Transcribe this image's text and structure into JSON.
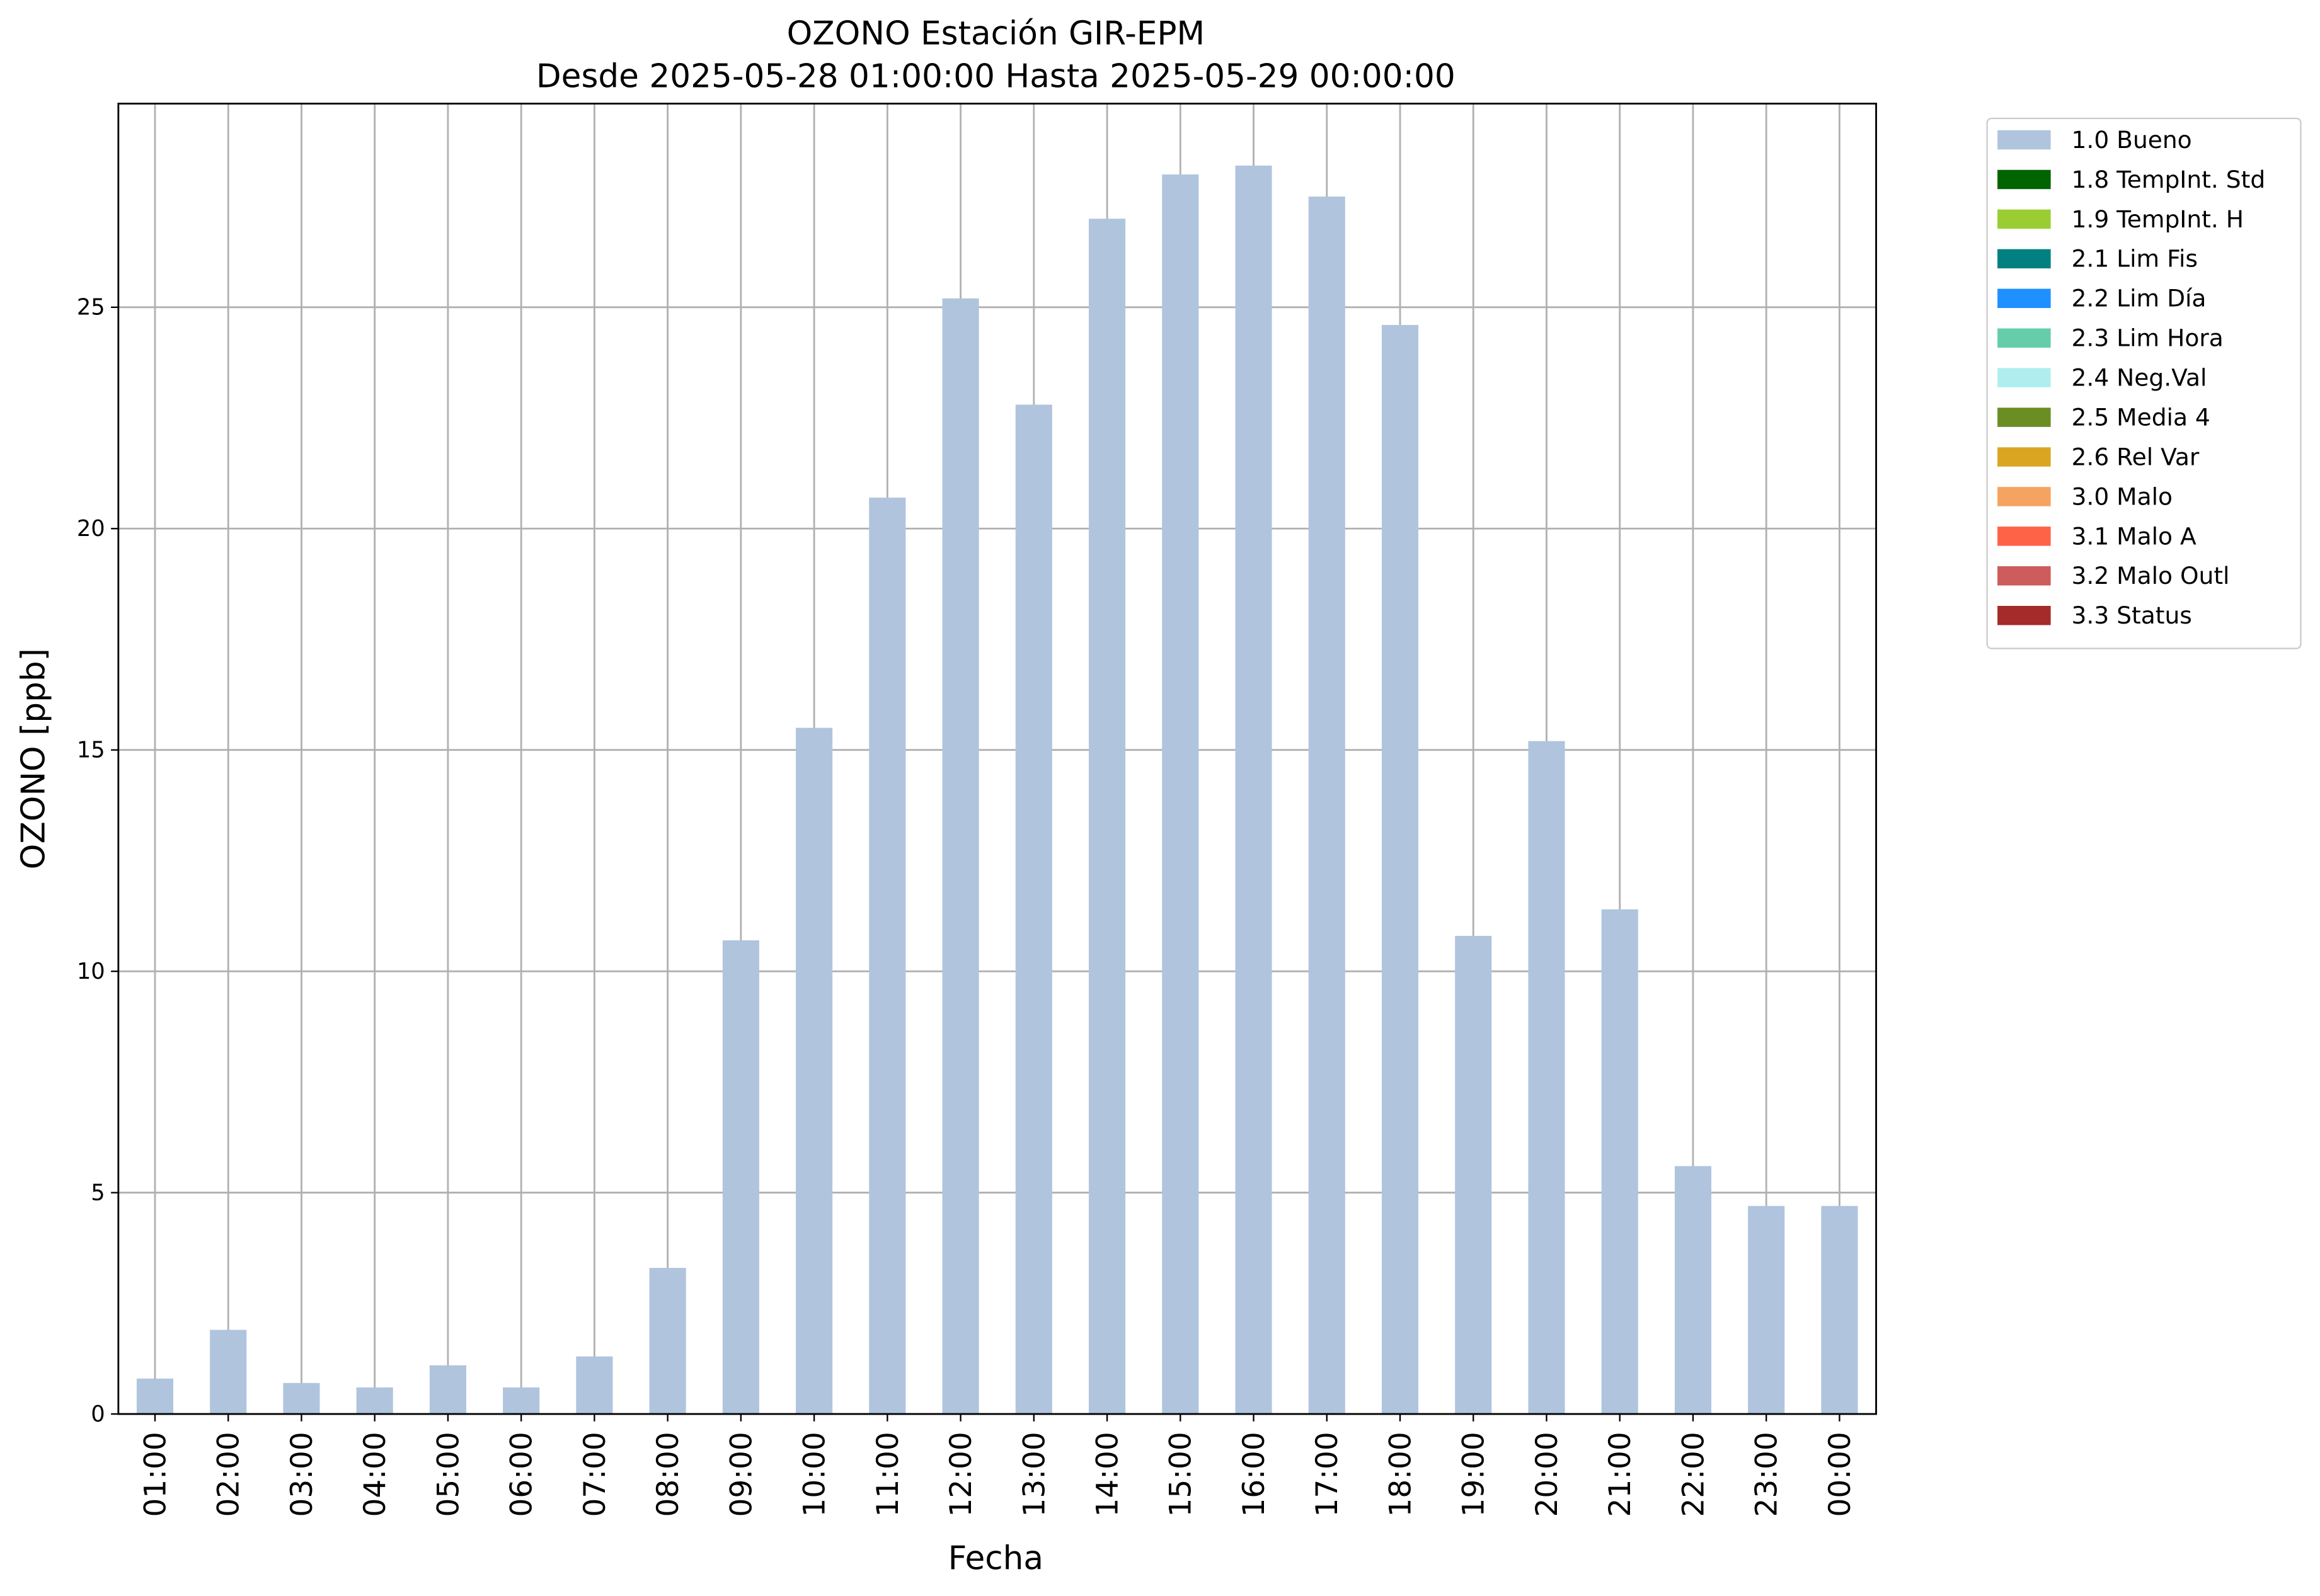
{
  "chart_data": {
    "type": "bar",
    "title": "OZONO Estación GIR-EPM",
    "subtitle": "Desde 2025-05-28 01:00:00 Hasta 2025-05-29 00:00:00",
    "x_label": "Fecha",
    "y_label": "OZONO [ppb]",
    "categories": [
      "01:00",
      "02:00",
      "03:00",
      "04:00",
      "05:00",
      "06:00",
      "07:00",
      "08:00",
      "09:00",
      "10:00",
      "11:00",
      "12:00",
      "13:00",
      "14:00",
      "15:00",
      "16:00",
      "17:00",
      "18:00",
      "19:00",
      "20:00",
      "21:00",
      "22:00",
      "23:00",
      "00:00"
    ],
    "series": [
      {
        "name": "1.0 Bueno",
        "color": "#b0c4de",
        "values": [
          0.8,
          1.9,
          0.7,
          0.6,
          1.1,
          0.6,
          1.3,
          3.3,
          10.7,
          15.5,
          20.7,
          25.2,
          22.8,
          27.0,
          28.0,
          28.2,
          27.5,
          24.6,
          10.8,
          15.2,
          11.4,
          5.6,
          4.7,
          4.7
        ]
      },
      {
        "name": "1.8 TempInt. Std",
        "color": "#006400"
      },
      {
        "name": "1.9 TempInt. H",
        "color": "#9acd32"
      },
      {
        "name": "2.1 Lim Fis",
        "color": "#008080"
      },
      {
        "name": "2.2 Lim Día",
        "color": "#1e90ff"
      },
      {
        "name": "2.3 Lim Hora",
        "color": "#66cdaa"
      },
      {
        "name": "2.4 Neg.Val",
        "color": "#afeeee"
      },
      {
        "name": "2.5 Media 4",
        "color": "#6b8e23"
      },
      {
        "name": "2.6 Rel Var",
        "color": "#daa520"
      },
      {
        "name": "3.0 Malo",
        "color": "#f4a460"
      },
      {
        "name": "3.1 Malo A",
        "color": "#ff6347"
      },
      {
        "name": "3.2 Malo Outl",
        "color": "#cd5c5c"
      },
      {
        "name": "3.3 Status",
        "color": "#a52a2a"
      }
    ],
    "ylim": [
      0,
      29.6
    ],
    "yticks": [
      0,
      5,
      10,
      15,
      20,
      25
    ],
    "grid": true,
    "legend": "outside-upper-right"
  }
}
